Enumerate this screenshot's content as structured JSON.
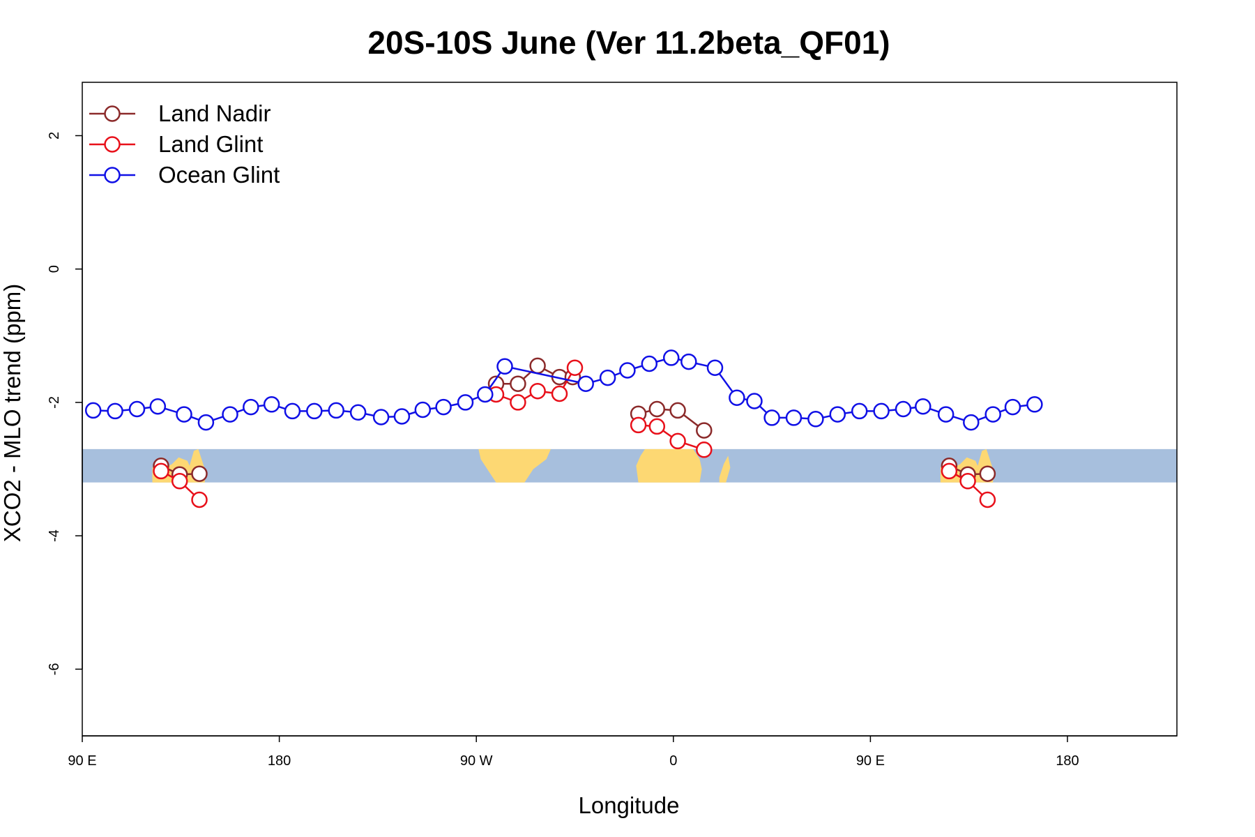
{
  "chart_data": {
    "type": "line",
    "title": "20S-10S June (Ver 11.2beta_QF01)",
    "xlabel": "Longitude",
    "ylabel": "XCO2 - MLO trend (ppm)",
    "xlim": [
      90,
      590
    ],
    "ylim": [
      -7,
      2.8
    ],
    "x_ticks": [
      {
        "value": 90,
        "label": "90 E"
      },
      {
        "value": 180,
        "label": "180"
      },
      {
        "value": 270,
        "label": "90 W"
      },
      {
        "value": 360,
        "label": "0"
      },
      {
        "value": 450,
        "label": "90 E"
      },
      {
        "value": 540,
        "label": "180"
      }
    ],
    "y_ticks": [
      {
        "value": 2,
        "label": "2"
      },
      {
        "value": 0,
        "label": "0"
      },
      {
        "value": -2,
        "label": "-2"
      },
      {
        "value": -4,
        "label": "-4"
      },
      {
        "value": -6,
        "label": "-6"
      }
    ],
    "legend_position": "top-left",
    "map_strip": {
      "ymin": -3.2,
      "ymax": -2.7,
      "ocean_color": "#a7bfdd",
      "land_color": "#fdd873"
    },
    "series": [
      {
        "name": "Land Nadir",
        "color": "#8b2a2a",
        "segments": [
          [
            {
              "x": 126,
              "y": -2.95
            },
            {
              "x": 134.5,
              "y": -3.08
            },
            {
              "x": 143.5,
              "y": -3.07
            }
          ],
          [
            {
              "x": 279,
              "y": -1.72
            },
            {
              "x": 289,
              "y": -1.72
            },
            {
              "x": 298,
              "y": -1.45
            },
            {
              "x": 308,
              "y": -1.62
            },
            {
              "x": 314,
              "y": -1.62
            }
          ],
          [
            {
              "x": 344,
              "y": -2.17
            },
            {
              "x": 352.5,
              "y": -2.1
            },
            {
              "x": 362,
              "y": -2.12
            },
            {
              "x": 374,
              "y": -2.42
            }
          ],
          [
            {
              "x": 486,
              "y": -2.95
            },
            {
              "x": 494.5,
              "y": -3.08
            },
            {
              "x": 503.5,
              "y": -3.07
            }
          ]
        ]
      },
      {
        "name": "Land Glint",
        "color": "#e8101a",
        "segments": [
          [
            {
              "x": 126,
              "y": -3.03
            },
            {
              "x": 134.5,
              "y": -3.18
            },
            {
              "x": 143.5,
              "y": -3.46
            }
          ],
          [
            {
              "x": 279,
              "y": -1.88
            },
            {
              "x": 289,
              "y": -2.0
            },
            {
              "x": 298,
              "y": -1.83
            },
            {
              "x": 308,
              "y": -1.87
            },
            {
              "x": 315,
              "y": -1.48
            }
          ],
          [
            {
              "x": 344,
              "y": -2.34
            },
            {
              "x": 352.5,
              "y": -2.36
            },
            {
              "x": 362,
              "y": -2.58
            },
            {
              "x": 374,
              "y": -2.71
            }
          ],
          [
            {
              "x": 486,
              "y": -3.03
            },
            {
              "x": 494.5,
              "y": -3.18
            },
            {
              "x": 503.5,
              "y": -3.46
            }
          ]
        ]
      },
      {
        "name": "Ocean Glint",
        "color": "#1010e6",
        "segments": [
          [
            {
              "x": 95,
              "y": -2.12
            },
            {
              "x": 105,
              "y": -2.13
            },
            {
              "x": 115,
              "y": -2.1
            },
            {
              "x": 124.5,
              "y": -2.06
            },
            {
              "x": 136.5,
              "y": -2.18
            },
            {
              "x": 146.5,
              "y": -2.3
            },
            {
              "x": 157.5,
              "y": -2.18
            },
            {
              "x": 167,
              "y": -2.07
            },
            {
              "x": 176.5,
              "y": -2.03
            },
            {
              "x": 186,
              "y": -2.13
            },
            {
              "x": 196,
              "y": -2.13
            },
            {
              "x": 206,
              "y": -2.12
            },
            {
              "x": 216,
              "y": -2.15
            },
            {
              "x": 226.5,
              "y": -2.22
            },
            {
              "x": 236,
              "y": -2.21
            },
            {
              "x": 245.5,
              "y": -2.11
            },
            {
              "x": 255,
              "y": -2.07
            },
            {
              "x": 265,
              "y": -2.0
            },
            {
              "x": 274,
              "y": -1.88
            },
            {
              "x": 283,
              "y": -1.46
            },
            {
              "x": 320,
              "y": -1.72
            },
            {
              "x": 330,
              "y": -1.63
            },
            {
              "x": 339,
              "y": -1.52
            },
            {
              "x": 349,
              "y": -1.42
            },
            {
              "x": 359,
              "y": -1.33
            },
            {
              "x": 367,
              "y": -1.39
            },
            {
              "x": 379,
              "y": -1.48
            },
            {
              "x": 389,
              "y": -1.93
            },
            {
              "x": 397,
              "y": -1.98
            },
            {
              "x": 405,
              "y": -2.23
            },
            {
              "x": 415,
              "y": -2.23
            },
            {
              "x": 425,
              "y": -2.25
            },
            {
              "x": 435,
              "y": -2.18
            },
            {
              "x": 445,
              "y": -2.13
            },
            {
              "x": 455,
              "y": -2.13
            },
            {
              "x": 465,
              "y": -2.1
            },
            {
              "x": 474,
              "y": -2.06
            },
            {
              "x": 484.5,
              "y": -2.18
            },
            {
              "x": 496,
              "y": -2.3
            },
            {
              "x": 506,
              "y": -2.18
            },
            {
              "x": 515,
              "y": -2.07
            },
            {
              "x": 525,
              "y": -2.03
            }
          ]
        ]
      }
    ]
  }
}
